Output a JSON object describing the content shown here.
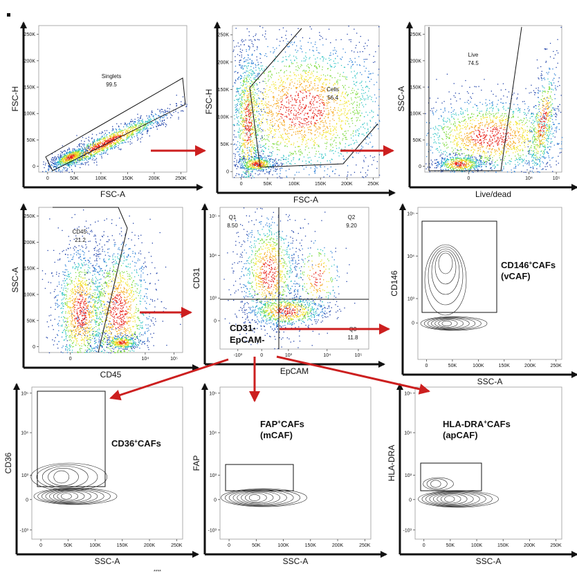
{
  "figure": {
    "panels": [
      {
        "id": "singlets",
        "xlabel": "FSC-A",
        "ylabel": "FSC-H",
        "xticks": [
          "0",
          "50K",
          "100K",
          "150K",
          "200K",
          "250K"
        ],
        "yticks": [
          "0",
          "50K",
          "100K",
          "150K",
          "200K",
          "250K"
        ],
        "gates": [
          {
            "name": "Singlets",
            "value": "99.5"
          }
        ]
      },
      {
        "id": "cells",
        "xlabel": "FSC-A",
        "ylabel": "FSC-H",
        "xticks": [
          "0",
          "50K",
          "100K",
          "150K",
          "200K",
          "250K"
        ],
        "yticks": [
          "0",
          "50K",
          "100K",
          "150K",
          "200K",
          "250K"
        ],
        "gates": [
          {
            "name": "Cells",
            "value": "56.4"
          }
        ]
      },
      {
        "id": "live",
        "xlabel": "Live/dead",
        "ylabel": "SSC-A",
        "xticks": [
          "0",
          "10⁴",
          "10⁵"
        ],
        "yticks": [
          "0",
          "50K",
          "100K",
          "150K",
          "200K",
          "250K"
        ],
        "gates": [
          {
            "name": "Live",
            "value": "74.5"
          }
        ]
      },
      {
        "id": "cd45",
        "xlabel": "CD45",
        "ylabel": "SSC-A",
        "xticks": [
          "0",
          "10⁴",
          "10⁵"
        ],
        "yticks": [
          "0",
          "50K",
          "100K",
          "150K",
          "200K",
          "250K"
        ],
        "gates": [
          {
            "name": "CD45-",
            "value": "21.2"
          }
        ]
      },
      {
        "id": "quadrant",
        "xlabel": "EpCAM",
        "ylabel": "CD31",
        "xticks": [
          "-10³",
          "0",
          "10³",
          "10⁴",
          "10⁵"
        ],
        "yticks": [
          "0",
          "10³",
          "10⁴",
          "10⁵"
        ],
        "quadrants": [
          {
            "name": "Q1",
            "value": "8.50"
          },
          {
            "name": "Q2",
            "value": "9.20"
          },
          {
            "name": "Q3",
            "value": "11.8"
          }
        ],
        "callout": [
          "CD31-",
          "EpCAM-"
        ]
      },
      {
        "id": "cd146",
        "xlabel": "SSC-A",
        "ylabel": "CD146",
        "xticks": [
          "0",
          "50K",
          "100K",
          "150K",
          "200K",
          "250K"
        ],
        "yticks": [
          "0",
          "10³",
          "10⁴",
          "10⁵"
        ],
        "population": {
          "main": "CD146",
          "sup": "+",
          "rest": "CAFs",
          "sub": "(vCAF)"
        }
      },
      {
        "id": "cd36",
        "xlabel": "SSC-A",
        "ylabel": "CD36",
        "xticks": [
          "0",
          "50K",
          "100K",
          "150K",
          "200K",
          "250K"
        ],
        "yticks": [
          "-10³",
          "0",
          "10³",
          "10⁴",
          "10⁵"
        ],
        "population": {
          "main": "CD36",
          "sup": "+",
          "rest": "CAFs",
          "sub": ""
        }
      },
      {
        "id": "fap",
        "xlabel": "SSC-A",
        "ylabel": "FAP",
        "xticks": [
          "0",
          "50K",
          "100K",
          "150K",
          "200K",
          "250K"
        ],
        "yticks": [
          "-10³",
          "0",
          "10³",
          "10⁴",
          "10⁵"
        ],
        "population": {
          "main": "FAP",
          "sup": "+",
          "rest": "CAFs",
          "sub": "(mCAF)"
        }
      },
      {
        "id": "hladra",
        "xlabel": "SSC-A",
        "ylabel": "HLA-DRA",
        "xticks": [
          "0",
          "50K",
          "100K",
          "150K",
          "200K",
          "250K"
        ],
        "yticks": [
          "-10³",
          "0",
          "10³",
          "10⁴",
          "10⁵"
        ],
        "population": {
          "main": "HLA-DRA",
          "sup": "+",
          "rest": "CAFs",
          "sub": "(apCAF)"
        }
      }
    ],
    "footer_text": "****"
  },
  "chart_data": [
    {
      "type": "scatter",
      "title": "",
      "xlabel": "FSC-A",
      "ylabel": "FSC-H",
      "xlim": [
        0,
        260000
      ],
      "ylim": [
        0,
        260000
      ],
      "gates": [
        {
          "name": "Singlets",
          "percent": 99.5
        }
      ]
    },
    {
      "type": "scatter",
      "title": "",
      "xlabel": "FSC-A",
      "ylabel": "FSC-H",
      "xlim": [
        0,
        260000
      ],
      "ylim": [
        0,
        260000
      ],
      "gates": [
        {
          "name": "Cells",
          "percent": 56.4
        }
      ]
    },
    {
      "type": "scatter",
      "title": "",
      "xlabel": "Live/dead",
      "ylabel": "SSC-A",
      "ylim": [
        0,
        260000
      ],
      "gates": [
        {
          "name": "Live",
          "percent": 74.5
        }
      ]
    },
    {
      "type": "scatter",
      "title": "",
      "xlabel": "CD45",
      "ylabel": "SSC-A",
      "ylim": [
        0,
        260000
      ],
      "gates": [
        {
          "name": "CD45-",
          "percent": 21.2
        }
      ]
    },
    {
      "type": "scatter",
      "title": "",
      "xlabel": "EpCAM",
      "ylabel": "CD31",
      "gates": [
        {
          "name": "Q1",
          "percent": 8.5
        },
        {
          "name": "Q2",
          "percent": 9.2
        },
        {
          "name": "Q3",
          "percent": 11.8
        }
      ]
    },
    {
      "type": "scatter",
      "title": "",
      "xlabel": "SSC-A",
      "ylabel": "CD146",
      "xlim": [
        0,
        260000
      ],
      "population": "CD146+CAFs (vCAF)"
    },
    {
      "type": "scatter",
      "title": "",
      "xlabel": "SSC-A",
      "ylabel": "CD36",
      "xlim": [
        0,
        260000
      ],
      "population": "CD36+CAFs"
    },
    {
      "type": "scatter",
      "title": "",
      "xlabel": "SSC-A",
      "ylabel": "FAP",
      "xlim": [
        0,
        260000
      ],
      "population": "FAP+CAFs (mCAF)"
    },
    {
      "type": "scatter",
      "title": "",
      "xlabel": "SSC-A",
      "ylabel": "HLA-DRA",
      "xlim": [
        0,
        260000
      ],
      "population": "HLA-DRA+CAFs (apCAF)"
    }
  ]
}
